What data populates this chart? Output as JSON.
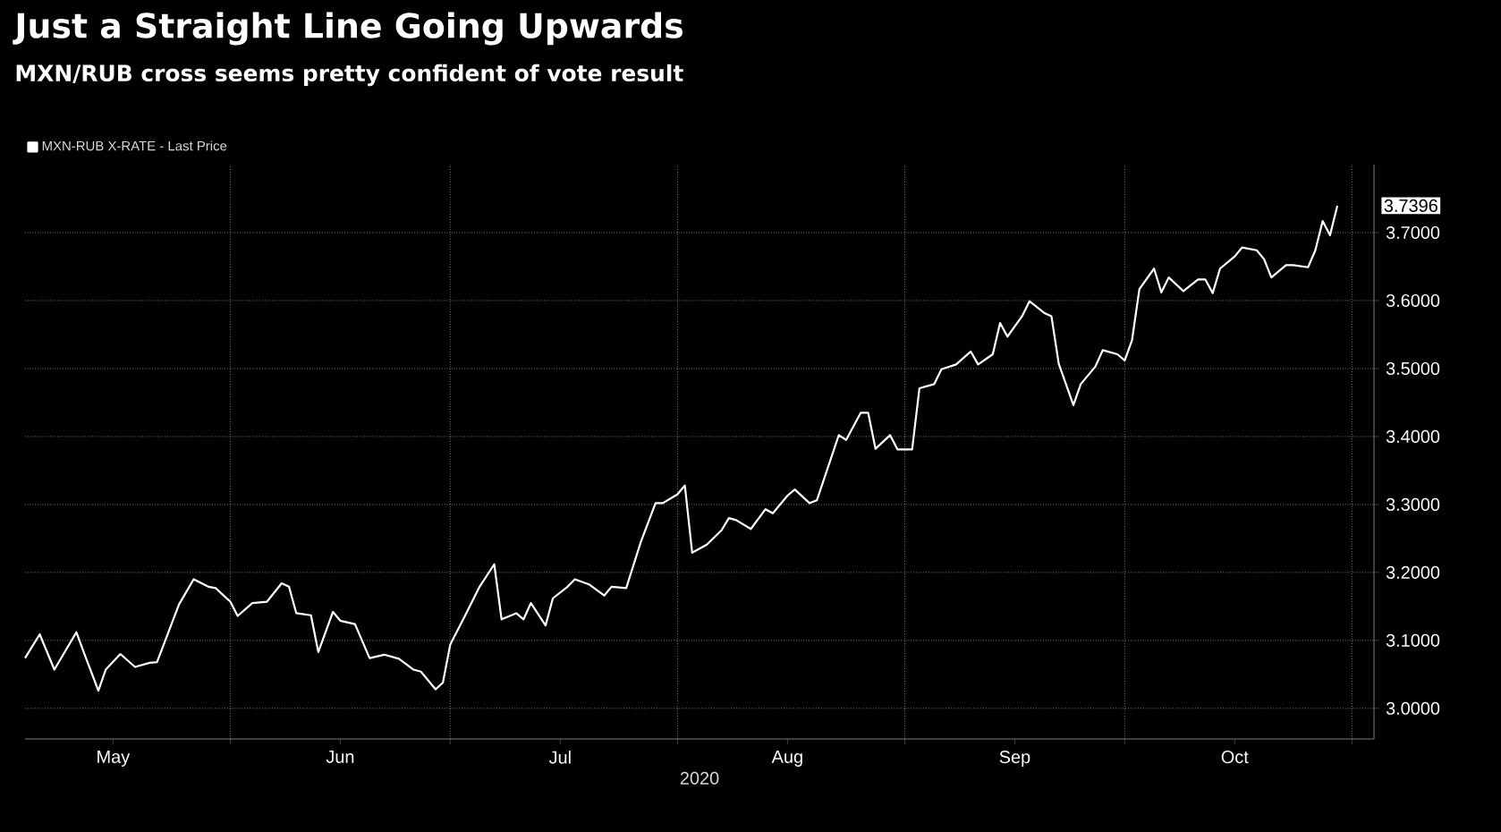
{
  "chart_data": {
    "type": "line",
    "title": "Just a Straight Line Going Upwards",
    "subtitle": "MXN/RUB cross seems pretty confident of vote result",
    "xlabel": "2020",
    "x": [
      "2020-05-04",
      "2020-05-06",
      "2020-05-08",
      "2020-05-11",
      "2020-05-12",
      "2020-05-14",
      "2020-05-15",
      "2020-05-17",
      "2020-05-19",
      "2020-05-21",
      "2020-05-22",
      "2020-05-25",
      "2020-05-27",
      "2020-05-29",
      "2020-05-30",
      "2020-06-01",
      "2020-06-02",
      "2020-06-04",
      "2020-06-06",
      "2020-06-08",
      "2020-06-09",
      "2020-06-10",
      "2020-06-12",
      "2020-06-13",
      "2020-06-15",
      "2020-06-16",
      "2020-06-18",
      "2020-06-20",
      "2020-06-22",
      "2020-06-24",
      "2020-06-26",
      "2020-06-27",
      "2020-06-29",
      "2020-06-30",
      "2020-07-01",
      "2020-07-03",
      "2020-07-05",
      "2020-07-07",
      "2020-07-08",
      "2020-07-10",
      "2020-07-11",
      "2020-07-12",
      "2020-07-14",
      "2020-07-15",
      "2020-07-17",
      "2020-07-18",
      "2020-07-20",
      "2020-07-22",
      "2020-07-23",
      "2020-07-25",
      "2020-07-27",
      "2020-07-29",
      "2020-07-30",
      "2020-08-01",
      "2020-08-02",
      "2020-08-03",
      "2020-08-05",
      "2020-08-07",
      "2020-08-08",
      "2020-08-09",
      "2020-08-11",
      "2020-08-13",
      "2020-08-14",
      "2020-08-16",
      "2020-08-17",
      "2020-08-19",
      "2020-08-20",
      "2020-08-23",
      "2020-08-24",
      "2020-08-26",
      "2020-08-27",
      "2020-08-28",
      "2020-08-30",
      "2020-08-31",
      "2020-09-02",
      "2020-09-03",
      "2020-09-05",
      "2020-09-06",
      "2020-09-08",
      "2020-09-10",
      "2020-09-11",
      "2020-09-13",
      "2020-09-14",
      "2020-09-15",
      "2020-09-17",
      "2020-09-18",
      "2020-09-20",
      "2020-09-21",
      "2020-09-22",
      "2020-09-24",
      "2020-09-25",
      "2020-09-27",
      "2020-09-28",
      "2020-09-30",
      "2020-10-01",
      "2020-10-02",
      "2020-10-03",
      "2020-10-05",
      "2020-10-06",
      "2020-10-07",
      "2020-10-09",
      "2020-10-11",
      "2020-10-12",
      "2020-10-13",
      "2020-10-14",
      "2020-10-16",
      "2020-10-17",
      "2020-10-19",
      "2020-10-20",
      "2020-10-21",
      "2020-10-23",
      "2020-10-24",
      "2020-10-26",
      "2020-10-27",
      "2020-10-28",
      "2020-10-29",
      "2020-10-30"
    ],
    "series": [
      {
        "name": "MXN-RUB X-RATE - Last Price",
        "color": "#ffffff",
        "values": [
          3.074,
          3.109,
          3.057,
          3.112,
          3.083,
          3.026,
          3.057,
          3.08,
          3.061,
          3.067,
          3.068,
          3.153,
          3.19,
          3.179,
          3.177,
          3.157,
          3.136,
          3.155,
          3.157,
          3.184,
          3.179,
          3.14,
          3.137,
          3.083,
          3.142,
          3.129,
          3.124,
          3.074,
          3.079,
          3.073,
          3.057,
          3.054,
          3.028,
          3.038,
          3.094,
          3.136,
          3.179,
          3.212,
          3.131,
          3.14,
          3.131,
          3.155,
          3.122,
          3.162,
          3.179,
          3.19,
          3.182,
          3.166,
          3.179,
          3.177,
          3.245,
          3.302,
          3.302,
          3.315,
          3.328,
          3.229,
          3.241,
          3.262,
          3.28,
          3.277,
          3.264,
          3.293,
          3.287,
          3.313,
          3.322,
          3.302,
          3.306,
          3.402,
          3.395,
          3.435,
          3.435,
          3.382,
          3.402,
          3.381,
          3.381,
          3.471,
          3.477,
          3.499,
          3.506,
          3.525,
          3.506,
          3.521,
          3.567,
          3.547,
          3.577,
          3.599,
          3.582,
          3.577,
          3.507,
          3.446,
          3.477,
          3.503,
          3.527,
          3.521,
          3.512,
          3.542,
          3.617,
          3.647,
          3.612,
          3.634,
          3.614,
          3.631,
          3.631,
          3.611,
          3.647,
          3.665,
          3.678,
          3.674,
          3.661,
          3.634,
          3.652,
          3.652,
          3.649,
          3.674,
          3.717,
          3.696,
          3.7396
        ]
      }
    ],
    "xlim": [
      "2020-05-04",
      "2020-11-04"
    ],
    "xticks": [
      {
        "value": "2020-05-16",
        "label": "May"
      },
      {
        "value": "2020-06-01",
        "label": null
      },
      {
        "value": "2020-06-16",
        "label": "Jun"
      },
      {
        "value": "2020-07-01",
        "label": null
      },
      {
        "value": "2020-07-16",
        "label": "Jul"
      },
      {
        "value": "2020-08-01",
        "label": null
      },
      {
        "value": "2020-08-16",
        "label": "Aug"
      },
      {
        "value": "2020-09-01",
        "label": null
      },
      {
        "value": "2020-09-16",
        "label": "Sep"
      },
      {
        "value": "2020-10-01",
        "label": null
      },
      {
        "value": "2020-10-16",
        "label": "Oct"
      },
      {
        "value": "2020-11-01",
        "label": null
      }
    ],
    "ylim": [
      2.955,
      3.8
    ],
    "yticks": [
      {
        "value": 3.0,
        "label": "3.0000"
      },
      {
        "value": 3.1,
        "label": "3.1000"
      },
      {
        "value": 3.2,
        "label": "3.2000"
      },
      {
        "value": 3.3,
        "label": "3.3000"
      },
      {
        "value": 3.4,
        "label": "3.4000"
      },
      {
        "value": 3.5,
        "label": "3.5000"
      },
      {
        "value": 3.6,
        "label": "3.6000"
      },
      {
        "value": 3.7,
        "label": "3.7000"
      }
    ],
    "annotations": [
      {
        "text": "3.7396",
        "x": "2020-10-30",
        "y": 3.7396
      }
    ],
    "grid": true,
    "legend": "top left",
    "marker": "none",
    "line_style": "solid"
  }
}
